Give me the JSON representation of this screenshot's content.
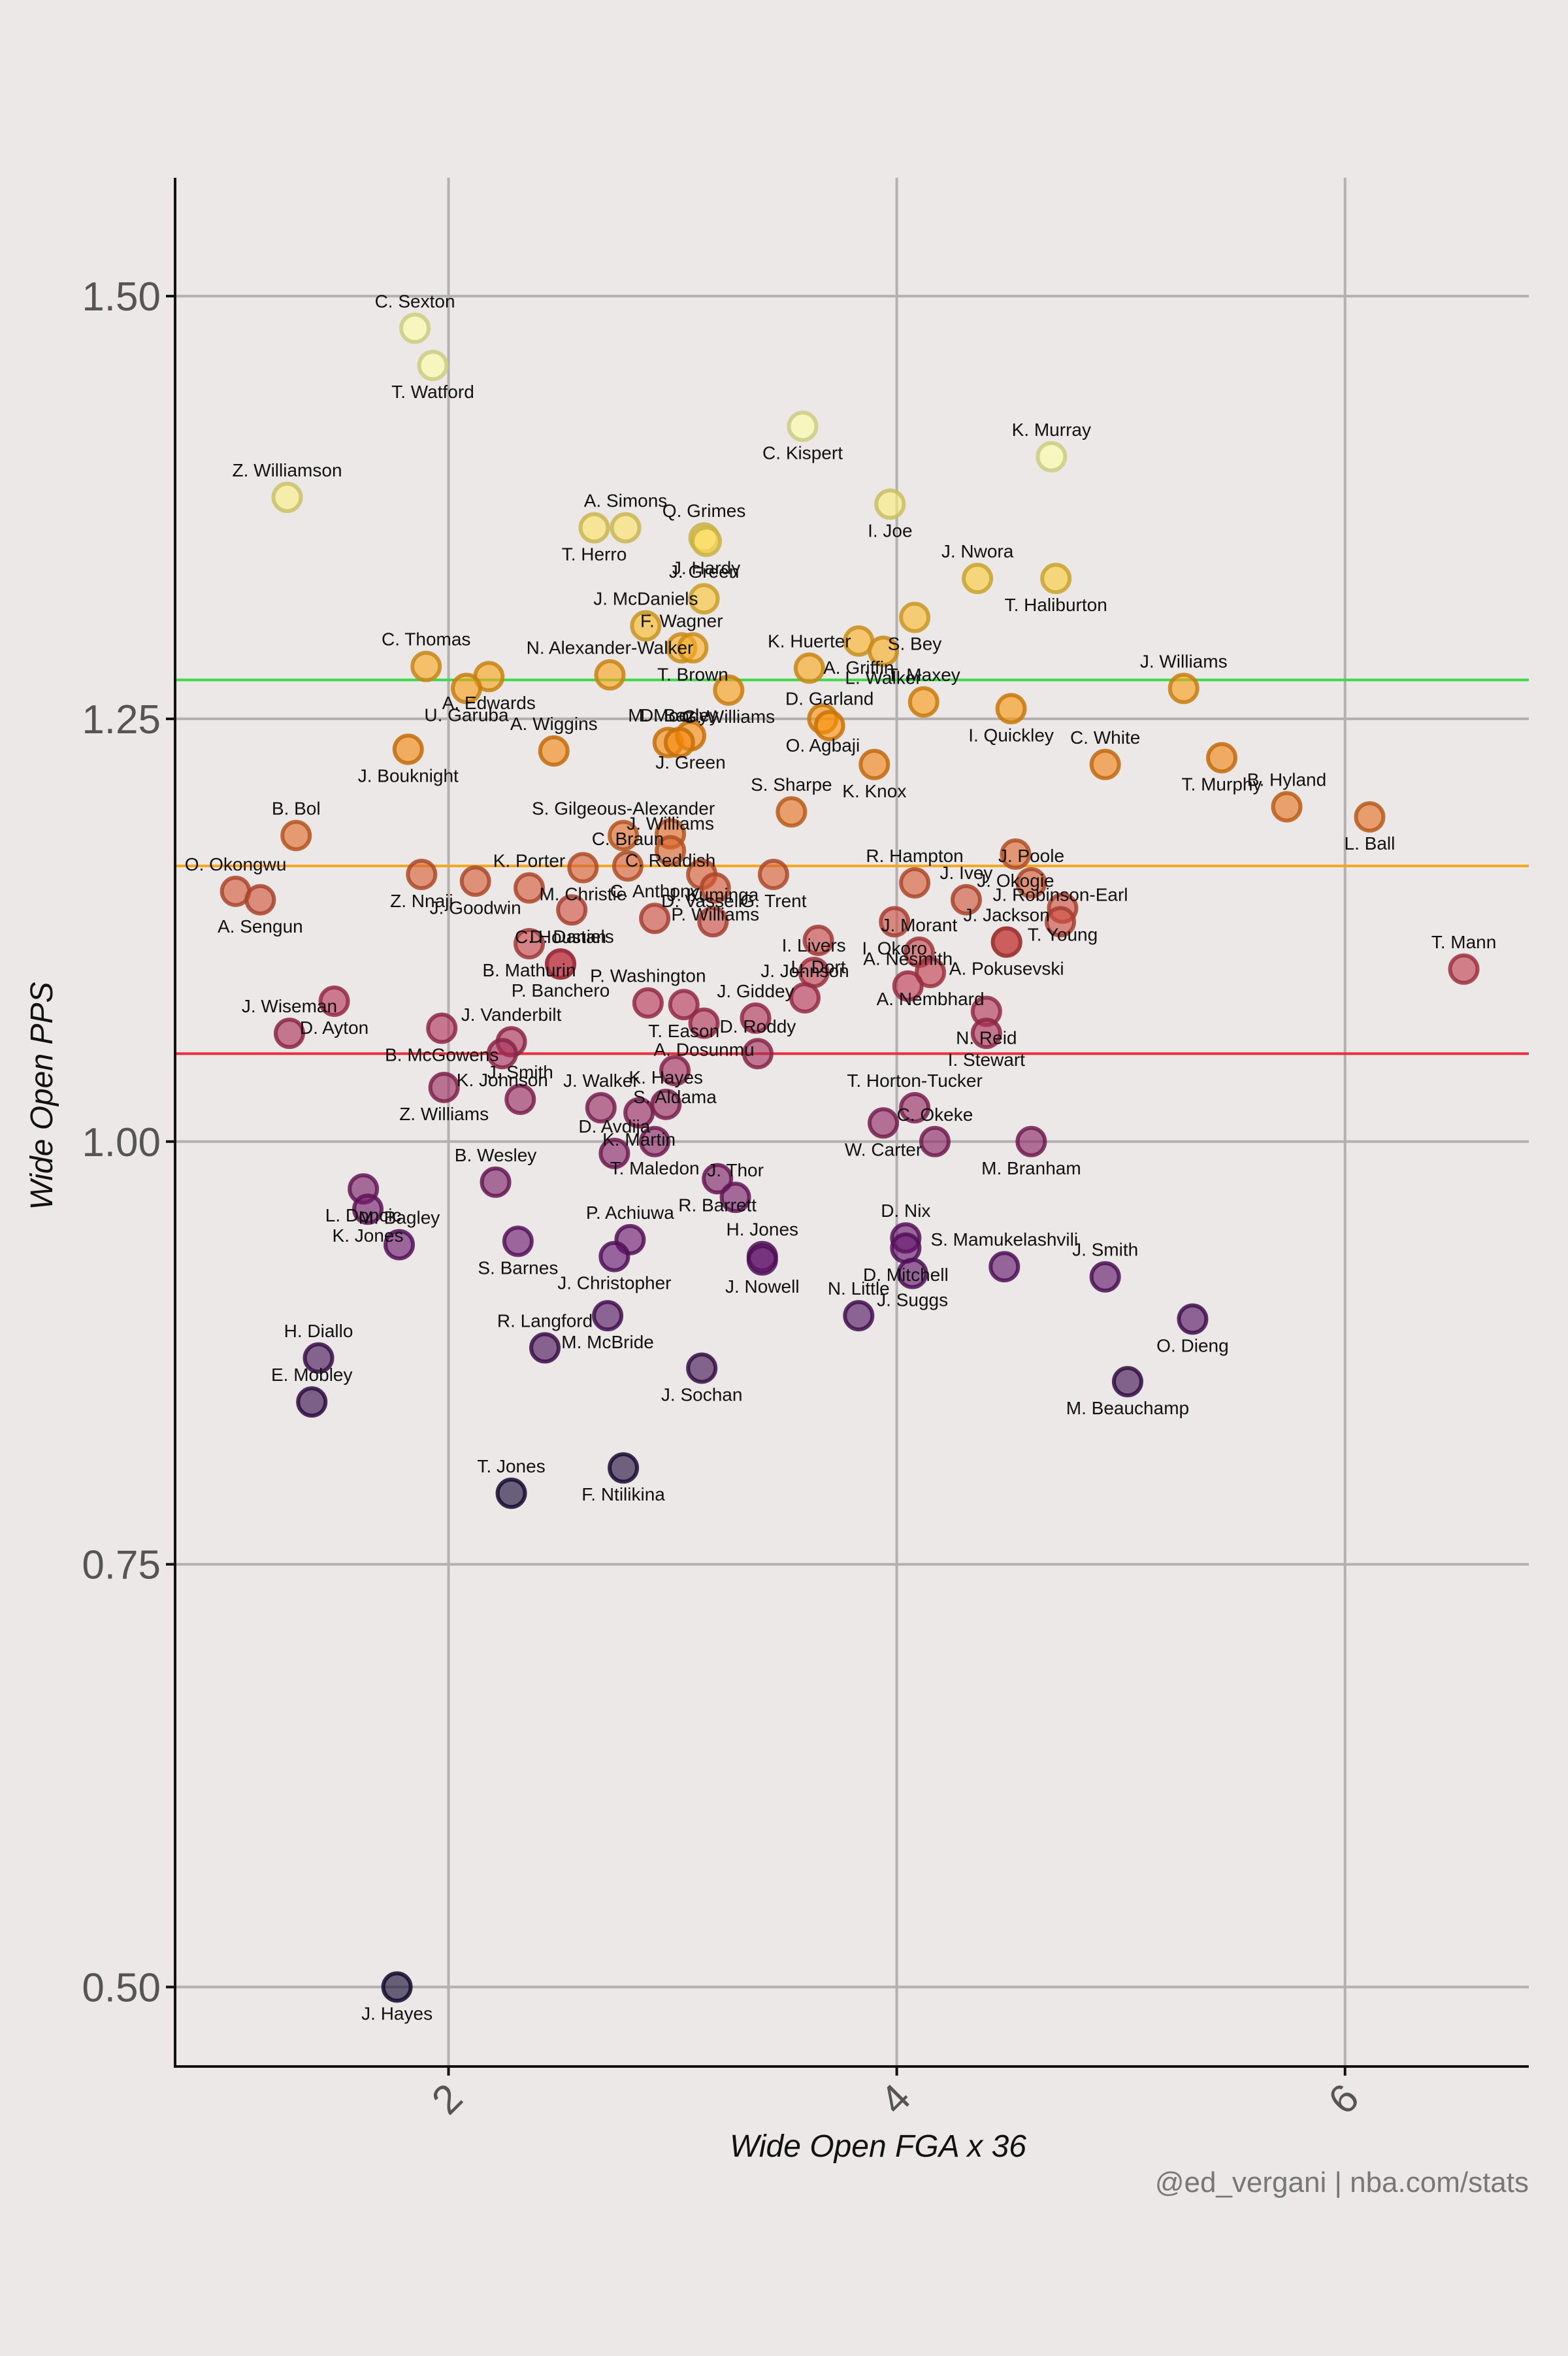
{
  "chart_data": {
    "type": "scatter",
    "title": "",
    "xlabel": "Wide Open FGA x 36",
    "ylabel": "Wide Open PPS",
    "xlim": [
      0.78,
      6.82
    ],
    "ylim": [
      0.453,
      1.57
    ],
    "xticks": [
      {
        "value": 2,
        "label": "2"
      },
      {
        "value": 4,
        "label": "4"
      },
      {
        "value": 6,
        "label": "6"
      }
    ],
    "yticks": [
      {
        "value": 0.5,
        "label": "0.50"
      },
      {
        "value": 0.75,
        "label": "0.75"
      },
      {
        "value": 1.0,
        "label": "1.00"
      },
      {
        "value": 1.25,
        "label": "1.25"
      },
      {
        "value": 1.5,
        "label": "1.50"
      }
    ],
    "grid": true,
    "color_scale": "inferno (by y value)",
    "reference_lines": [
      {
        "y": 1.273,
        "color": "#3cd94a"
      },
      {
        "y": 1.163,
        "color": "#f5a623"
      },
      {
        "y": 1.052,
        "color": "#e8313a"
      }
    ],
    "points": [
      {
        "name": "C. Sexton",
        "x": 1.85,
        "y": 1.481
      },
      {
        "name": "T. Watford",
        "x": 1.93,
        "y": 1.459
      },
      {
        "name": "Z. Williamson",
        "x": 1.28,
        "y": 1.381
      },
      {
        "name": "C. Kispert",
        "x": 3.58,
        "y": 1.423
      },
      {
        "name": "K. Murray",
        "x": 4.69,
        "y": 1.405
      },
      {
        "name": "I. Joe",
        "x": 3.97,
        "y": 1.377
      },
      {
        "name": "A. Simons",
        "x": 2.79,
        "y": 1.363
      },
      {
        "name": "T. Herro",
        "x": 2.65,
        "y": 1.363
      },
      {
        "name": "Q. Grimes",
        "x": 3.14,
        "y": 1.357
      },
      {
        "name": "J. Hardy",
        "x": 3.15,
        "y": 1.355
      },
      {
        "name": "J. Nwora",
        "x": 4.36,
        "y": 1.333
      },
      {
        "name": "T. Haliburton",
        "x": 4.71,
        "y": 1.333
      },
      {
        "name": "J. Green",
        "x": 3.14,
        "y": 1.321
      },
      {
        "name": "S. Bey",
        "x": 4.08,
        "y": 1.31
      },
      {
        "name": "J. McDaniels",
        "x": 2.88,
        "y": 1.305
      },
      {
        "name": "A. Griffin",
        "x": 3.83,
        "y": 1.296
      },
      {
        "name": "F. Wagner",
        "x": 3.04,
        "y": 1.292
      },
      {
        "name": "T. Brown",
        "x": 3.09,
        "y": 1.292
      },
      {
        "name": "K. Huerter",
        "x": 3.61,
        "y": 1.28
      },
      {
        "name": "L. Walker",
        "x": 3.94,
        "y": 1.29
      },
      {
        "name": "C. Thomas",
        "x": 1.9,
        "y": 1.281
      },
      {
        "name": "A. Edwards",
        "x": 2.18,
        "y": 1.275
      },
      {
        "name": "N. Alexander-Walker",
        "x": 2.72,
        "y": 1.276
      },
      {
        "name": "G. Williams",
        "x": 3.25,
        "y": 1.267
      },
      {
        "name": "J. Williams",
        "x": 5.28,
        "y": 1.268
      },
      {
        "name": "U. Garuba",
        "x": 2.08,
        "y": 1.268
      },
      {
        "name": "A. Wiggins",
        "x": 2.47,
        "y": 1.231
      },
      {
        "name": "O. Agbaji",
        "x": 3.67,
        "y": 1.25
      },
      {
        "name": "T. Maxey",
        "x": 4.12,
        "y": 1.26
      },
      {
        "name": "I. Quickley",
        "x": 4.51,
        "y": 1.256
      },
      {
        "name": "D. Garland",
        "x": 3.7,
        "y": 1.246
      },
      {
        "name": "J. Bouknight",
        "x": 1.82,
        "y": 1.232
      },
      {
        "name": "M. Moody",
        "x": 2.98,
        "y": 1.236
      },
      {
        "name": "J. Green",
        "x": 3.08,
        "y": 1.24
      },
      {
        "name": "D. Bazley",
        "x": 3.03,
        "y": 1.236
      },
      {
        "name": "K. Knox",
        "x": 3.9,
        "y": 1.223
      },
      {
        "name": "C. White",
        "x": 4.93,
        "y": 1.223
      },
      {
        "name": "T. Murphy",
        "x": 5.45,
        "y": 1.227
      },
      {
        "name": "B. Hyland",
        "x": 5.74,
        "y": 1.198
      },
      {
        "name": "L. Ball",
        "x": 6.11,
        "y": 1.192
      },
      {
        "name": "S. Gilgeous-Alexander",
        "x": 2.78,
        "y": 1.181
      },
      {
        "name": "C. Reddish",
        "x": 2.99,
        "y": 1.182
      },
      {
        "name": "J. Williams",
        "x": 2.99,
        "y": 1.172
      },
      {
        "name": "M. Christie",
        "x": 2.6,
        "y": 1.162
      },
      {
        "name": "C. Braun",
        "x": 2.8,
        "y": 1.163
      },
      {
        "name": "D. Vassell",
        "x": 3.13,
        "y": 1.158
      },
      {
        "name": "S. Sharpe",
        "x": 3.53,
        "y": 1.195
      },
      {
        "name": "G. Trent",
        "x": 3.45,
        "y": 1.158
      },
      {
        "name": "B. Bol",
        "x": 1.32,
        "y": 1.181
      },
      {
        "name": "Z. Nnaji",
        "x": 1.88,
        "y": 1.158
      },
      {
        "name": "K. Porter",
        "x": 2.36,
        "y": 1.15
      },
      {
        "name": "J. Goodwin",
        "x": 2.12,
        "y": 1.154
      },
      {
        "name": "O. Okongwu",
        "x": 1.05,
        "y": 1.148
      },
      {
        "name": "A. Sengun",
        "x": 1.16,
        "y": 1.143
      },
      {
        "name": "R. Hampton",
        "x": 4.08,
        "y": 1.153
      },
      {
        "name": "J. Okogie",
        "x": 4.53,
        "y": 1.17
      },
      {
        "name": "J. Poole",
        "x": 4.6,
        "y": 1.153
      },
      {
        "name": "P. Williams",
        "x": 3.19,
        "y": 1.15
      },
      {
        "name": "C. Anthony",
        "x": 2.92,
        "y": 1.132
      },
      {
        "name": "D. Daniels",
        "x": 2.55,
        "y": 1.137
      },
      {
        "name": "J. Ivey",
        "x": 4.31,
        "y": 1.143
      },
      {
        "name": "T. Young",
        "x": 4.74,
        "y": 1.138
      },
      {
        "name": "J. Robinson-Earl",
        "x": 4.73,
        "y": 1.13
      },
      {
        "name": "A. Pokusevski",
        "x": 4.49,
        "y": 1.118
      },
      {
        "name": "J. Jackson",
        "x": 4.49,
        "y": 1.118
      },
      {
        "name": "B. Mathurin",
        "x": 2.36,
        "y": 1.117
      },
      {
        "name": "J. Kuminga",
        "x": 3.18,
        "y": 1.13
      },
      {
        "name": "I. Okoro",
        "x": 3.99,
        "y": 1.13
      },
      {
        "name": "J. Morant",
        "x": 4.1,
        "y": 1.112
      },
      {
        "name": "P. Banchero",
        "x": 2.5,
        "y": 1.105
      },
      {
        "name": "C. Houstan",
        "x": 2.5,
        "y": 1.105
      },
      {
        "name": "L. Dort",
        "x": 3.65,
        "y": 1.119
      },
      {
        "name": "I. Livers",
        "x": 3.63,
        "y": 1.1
      },
      {
        "name": "A. Nembhard",
        "x": 4.15,
        "y": 1.1
      },
      {
        "name": "T. Mann",
        "x": 6.53,
        "y": 1.102
      },
      {
        "name": "D. Ayton",
        "x": 1.49,
        "y": 1.083
      },
      {
        "name": "J. Wiseman",
        "x": 1.29,
        "y": 1.064
      },
      {
        "name": "B. McGowens",
        "x": 1.97,
        "y": 1.067
      },
      {
        "name": "P. Washington",
        "x": 2.89,
        "y": 1.082
      },
      {
        "name": "T. Eason",
        "x": 3.05,
        "y": 1.081
      },
      {
        "name": "J. Johnson",
        "x": 3.59,
        "y": 1.085
      },
      {
        "name": "A. Dosunmu",
        "x": 3.14,
        "y": 1.07
      },
      {
        "name": "J. Giddey",
        "x": 3.37,
        "y": 1.073
      },
      {
        "name": "N. Reid",
        "x": 4.4,
        "y": 1.077
      },
      {
        "name": "A. Nesmith",
        "x": 4.05,
        "y": 1.092
      },
      {
        "name": "I. Stewart",
        "x": 4.4,
        "y": 1.064
      },
      {
        "name": "J. Vanderbilt",
        "x": 2.28,
        "y": 1.059
      },
      {
        "name": "K. Johnson",
        "x": 2.24,
        "y": 1.052
      },
      {
        "name": "J. Smith",
        "x": 2.32,
        "y": 1.025
      },
      {
        "name": "S. Aldama",
        "x": 3.01,
        "y": 1.042
      },
      {
        "name": "D. Roddy",
        "x": 3.38,
        "y": 1.052
      },
      {
        "name": "Z. Williams",
        "x": 1.98,
        "y": 1.032
      },
      {
        "name": "J. Walker",
        "x": 2.68,
        "y": 1.02
      },
      {
        "name": "K. Martin",
        "x": 2.85,
        "y": 1.017
      },
      {
        "name": "K. Hayes",
        "x": 2.97,
        "y": 1.022
      },
      {
        "name": "T. Maledon",
        "x": 2.92,
        "y": 1.0
      },
      {
        "name": "T. Horton-Tucker",
        "x": 4.08,
        "y": 1.02
      },
      {
        "name": "W. Carter",
        "x": 3.94,
        "y": 1.011
      },
      {
        "name": "C. Okeke",
        "x": 4.17,
        "y": 1.0
      },
      {
        "name": "M. Branham",
        "x": 4.6,
        "y": 1.0
      },
      {
        "name": "D. Avdija",
        "x": 2.74,
        "y": 0.993
      },
      {
        "name": "R. Barrett",
        "x": 3.2,
        "y": 0.978
      },
      {
        "name": "J. Thor",
        "x": 3.28,
        "y": 0.967
      },
      {
        "name": "L. Doncic",
        "x": 1.62,
        "y": 0.972
      },
      {
        "name": "B. Wesley",
        "x": 2.21,
        "y": 0.976
      },
      {
        "name": "K. Jones",
        "x": 1.64,
        "y": 0.96
      },
      {
        "name": "M. Bagley",
        "x": 1.78,
        "y": 0.939
      },
      {
        "name": "S. Barnes",
        "x": 2.31,
        "y": 0.941
      },
      {
        "name": "P. Achiuwa",
        "x": 2.81,
        "y": 0.942
      },
      {
        "name": "J. Christopher",
        "x": 2.74,
        "y": 0.932
      },
      {
        "name": "H. Jones",
        "x": 3.4,
        "y": 0.932
      },
      {
        "name": "J. Nowell",
        "x": 3.4,
        "y": 0.93
      },
      {
        "name": "D. Nix",
        "x": 4.04,
        "y": 0.943
      },
      {
        "name": "D. Mitchell",
        "x": 4.04,
        "y": 0.937
      },
      {
        "name": "S. Mamukelashvili",
        "x": 4.48,
        "y": 0.926
      },
      {
        "name": "J. Suggs",
        "x": 4.07,
        "y": 0.922
      },
      {
        "name": "J. Smith",
        "x": 4.93,
        "y": 0.92
      },
      {
        "name": "M. McBride",
        "x": 2.71,
        "y": 0.897
      },
      {
        "name": "N. Little",
        "x": 3.83,
        "y": 0.897
      },
      {
        "name": "O. Dieng",
        "x": 5.32,
        "y": 0.895
      },
      {
        "name": "H. Diallo",
        "x": 1.42,
        "y": 0.872
      },
      {
        "name": "J. Sochan",
        "x": 3.13,
        "y": 0.866
      },
      {
        "name": "R. Langford",
        "x": 2.43,
        "y": 0.878
      },
      {
        "name": "M. Beauchamp",
        "x": 5.03,
        "y": 0.858
      },
      {
        "name": "E. Mobley",
        "x": 1.39,
        "y": 0.846
      },
      {
        "name": "F. Ntilikina",
        "x": 2.78,
        "y": 0.807
      },
      {
        "name": "T. Jones",
        "x": 2.28,
        "y": 0.792
      },
      {
        "name": "J. Hayes",
        "x": 1.77,
        "y": 0.5
      }
    ]
  },
  "footer": {
    "credit": "@ed_vergani | nba.com/stats"
  }
}
